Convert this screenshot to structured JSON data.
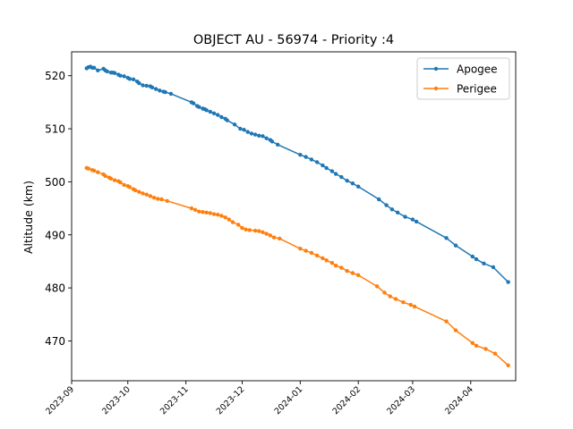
{
  "chart_data": {
    "type": "line",
    "title": "OBJECT AU - 56974 - Priority :4",
    "xlabel": "",
    "ylabel": "Altitude (km)",
    "xlim": [
      "2023-09-01",
      "2024-04-25"
    ],
    "ylim": [
      462.5,
      524.5
    ],
    "x_ticks": [
      "2023-09",
      "2023-10",
      "2023-11",
      "2023-12",
      "2024-01",
      "2024-02",
      "2024-03",
      "2024-04"
    ],
    "y_ticks": [
      470,
      480,
      490,
      500,
      510,
      520
    ],
    "grid": false,
    "legend": "top-right",
    "series": [
      {
        "name": "Apogee",
        "color": "#1f77b4",
        "points": [
          [
            "2023-09-09",
            521.4
          ],
          [
            "2023-09-10",
            521.6
          ],
          [
            "2023-09-11",
            521.7
          ],
          [
            "2023-09-12",
            521.5
          ],
          [
            "2023-09-13",
            521.5
          ],
          [
            "2023-09-15",
            521.0
          ],
          [
            "2023-09-18",
            521.3
          ],
          [
            "2023-09-19",
            521.0
          ],
          [
            "2023-09-20",
            520.8
          ],
          [
            "2023-09-22",
            520.6
          ],
          [
            "2023-09-23",
            520.6
          ],
          [
            "2023-09-24",
            520.5
          ],
          [
            "2023-09-26",
            520.2
          ],
          [
            "2023-09-27",
            520.0
          ],
          [
            "2023-09-29",
            519.9
          ],
          [
            "2023-10-01",
            519.6
          ],
          [
            "2023-10-02",
            519.4
          ],
          [
            "2023-10-04",
            519.3
          ],
          [
            "2023-10-06",
            518.9
          ],
          [
            "2023-10-07",
            518.6
          ],
          [
            "2023-10-09",
            518.2
          ],
          [
            "2023-10-11",
            518.1
          ],
          [
            "2023-10-13",
            518.0
          ],
          [
            "2023-10-14",
            517.8
          ],
          [
            "2023-10-16",
            517.5
          ],
          [
            "2023-10-18",
            517.2
          ],
          [
            "2023-10-20",
            517.0
          ],
          [
            "2023-10-21",
            516.9
          ],
          [
            "2023-10-24",
            516.6
          ],
          [
            "2023-11-04",
            515.0
          ],
          [
            "2023-11-05",
            514.8
          ],
          [
            "2023-11-07",
            514.3
          ],
          [
            "2023-11-08",
            514.1
          ],
          [
            "2023-11-10",
            513.8
          ],
          [
            "2023-11-11",
            513.7
          ],
          [
            "2023-11-12",
            513.5
          ],
          [
            "2023-11-14",
            513.2
          ],
          [
            "2023-11-16",
            512.9
          ],
          [
            "2023-11-18",
            512.6
          ],
          [
            "2023-11-20",
            512.2
          ],
          [
            "2023-11-22",
            511.9
          ],
          [
            "2023-11-23",
            511.6
          ],
          [
            "2023-11-27",
            510.8
          ],
          [
            "2023-11-30",
            510.0
          ],
          [
            "2023-12-02",
            509.8
          ],
          [
            "2023-12-04",
            509.4
          ],
          [
            "2023-12-06",
            509.1
          ],
          [
            "2023-12-08",
            508.9
          ],
          [
            "2023-12-10",
            508.7
          ],
          [
            "2023-12-12",
            508.6
          ],
          [
            "2023-12-14",
            508.2
          ],
          [
            "2023-12-16",
            507.9
          ],
          [
            "2023-12-17",
            507.6
          ],
          [
            "2023-12-20",
            507.0
          ],
          [
            "2024-01-01",
            505.1
          ],
          [
            "2024-01-04",
            504.7
          ],
          [
            "2024-01-07",
            504.2
          ],
          [
            "2024-01-10",
            503.7
          ],
          [
            "2024-01-13",
            503.1
          ],
          [
            "2024-01-15",
            502.6
          ],
          [
            "2024-01-18",
            502.0
          ],
          [
            "2024-01-20",
            501.5
          ],
          [
            "2024-01-23",
            500.9
          ],
          [
            "2024-01-26",
            500.2
          ],
          [
            "2024-01-29",
            499.7
          ],
          [
            "2024-02-01",
            499.1
          ],
          [
            "2024-02-12",
            496.7
          ],
          [
            "2024-02-16",
            495.6
          ],
          [
            "2024-02-19",
            494.8
          ],
          [
            "2024-02-22",
            494.2
          ],
          [
            "2024-02-26",
            493.4
          ],
          [
            "2024-03-01",
            492.9
          ],
          [
            "2024-03-03",
            492.5
          ],
          [
            "2024-03-19",
            489.4
          ],
          [
            "2024-03-24",
            488.0
          ],
          [
            "2024-04-02",
            485.9
          ],
          [
            "2024-04-04",
            485.4
          ],
          [
            "2024-04-08",
            484.6
          ],
          [
            "2024-04-13",
            483.9
          ],
          [
            "2024-04-21",
            481.1
          ]
        ]
      },
      {
        "name": "Perigee",
        "color": "#ff7f0e",
        "points": [
          [
            "2023-09-09",
            502.6
          ],
          [
            "2023-09-10",
            502.5
          ],
          [
            "2023-09-12",
            502.2
          ],
          [
            "2023-09-13",
            502.1
          ],
          [
            "2023-09-15",
            501.8
          ],
          [
            "2023-09-18",
            501.4
          ],
          [
            "2023-09-19",
            501.1
          ],
          [
            "2023-09-21",
            500.8
          ],
          [
            "2023-09-22",
            500.6
          ],
          [
            "2023-09-24",
            500.3
          ],
          [
            "2023-09-26",
            500.1
          ],
          [
            "2023-09-27",
            499.9
          ],
          [
            "2023-09-29",
            499.4
          ],
          [
            "2023-10-01",
            499.2
          ],
          [
            "2023-10-02",
            499.0
          ],
          [
            "2023-10-04",
            498.6
          ],
          [
            "2023-10-05",
            498.4
          ],
          [
            "2023-10-07",
            498.1
          ],
          [
            "2023-10-09",
            497.8
          ],
          [
            "2023-10-11",
            497.6
          ],
          [
            "2023-10-13",
            497.3
          ],
          [
            "2023-10-15",
            497.0
          ],
          [
            "2023-10-17",
            496.8
          ],
          [
            "2023-10-19",
            496.7
          ],
          [
            "2023-10-22",
            496.4
          ],
          [
            "2023-11-04",
            495.0
          ],
          [
            "2023-11-06",
            494.7
          ],
          [
            "2023-11-08",
            494.4
          ],
          [
            "2023-11-10",
            494.3
          ],
          [
            "2023-11-12",
            494.2
          ],
          [
            "2023-11-14",
            494.1
          ],
          [
            "2023-11-16",
            493.9
          ],
          [
            "2023-11-18",
            493.8
          ],
          [
            "2023-11-20",
            493.6
          ],
          [
            "2023-11-22",
            493.3
          ],
          [
            "2023-11-24",
            492.9
          ],
          [
            "2023-11-26",
            492.4
          ],
          [
            "2023-11-29",
            491.9
          ],
          [
            "2023-12-01",
            491.3
          ],
          [
            "2023-12-03",
            491.0
          ],
          [
            "2023-12-05",
            490.9
          ],
          [
            "2023-12-08",
            490.8
          ],
          [
            "2023-12-10",
            490.7
          ],
          [
            "2023-12-12",
            490.5
          ],
          [
            "2023-12-14",
            490.2
          ],
          [
            "2023-12-16",
            489.9
          ],
          [
            "2023-12-18",
            489.5
          ],
          [
            "2023-12-21",
            489.3
          ],
          [
            "2024-01-01",
            487.4
          ],
          [
            "2024-01-04",
            487.0
          ],
          [
            "2024-01-07",
            486.6
          ],
          [
            "2024-01-10",
            486.1
          ],
          [
            "2024-01-13",
            485.6
          ],
          [
            "2024-01-15",
            485.2
          ],
          [
            "2024-01-18",
            484.7
          ],
          [
            "2024-01-20",
            484.2
          ],
          [
            "2024-01-23",
            483.8
          ],
          [
            "2024-01-26",
            483.2
          ],
          [
            "2024-01-29",
            482.8
          ],
          [
            "2024-02-01",
            482.4
          ],
          [
            "2024-02-11",
            480.3
          ],
          [
            "2024-02-15",
            479.1
          ],
          [
            "2024-02-18",
            478.4
          ],
          [
            "2024-02-21",
            477.9
          ],
          [
            "2024-02-25",
            477.3
          ],
          [
            "2024-02-29",
            476.8
          ],
          [
            "2024-03-02",
            476.5
          ],
          [
            "2024-03-19",
            473.7
          ],
          [
            "2024-03-24",
            472.0
          ],
          [
            "2024-04-02",
            469.6
          ],
          [
            "2024-04-04",
            469.1
          ],
          [
            "2024-04-09",
            468.5
          ],
          [
            "2024-04-14",
            467.6
          ],
          [
            "2024-04-21",
            465.4
          ]
        ]
      }
    ]
  }
}
